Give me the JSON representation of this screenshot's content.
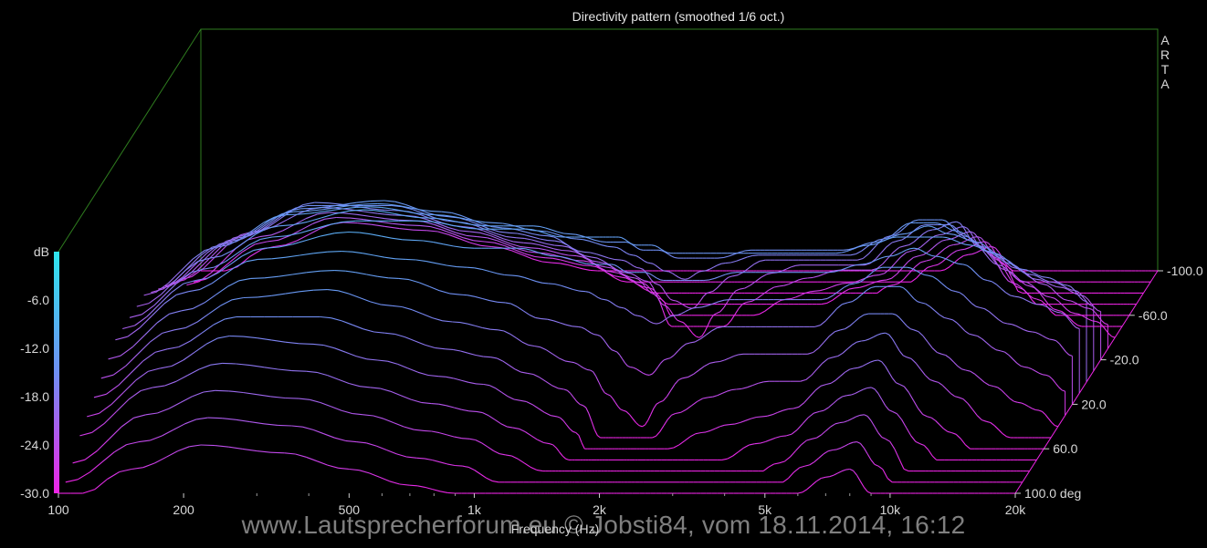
{
  "chart_data": {
    "type": "waterfall",
    "title": "Directivity pattern (smoothed 1/6 oct.)",
    "brand": [
      "A",
      "R",
      "T",
      "A"
    ],
    "xlabel": "Frequency (Hz)",
    "x_scale": "log",
    "x_range": [
      100,
      20000
    ],
    "x_ticks": [
      {
        "v": 100,
        "label": "100"
      },
      {
        "v": 200,
        "label": "200"
      },
      {
        "v": 500,
        "label": "500"
      },
      {
        "v": 1000,
        "label": "1k"
      },
      {
        "v": 2000,
        "label": "2k"
      },
      {
        "v": 5000,
        "label": "5k"
      },
      {
        "v": 10000,
        "label": "10k"
      },
      {
        "v": 20000,
        "label": "20k"
      }
    ],
    "ylabel": "dB",
    "y_range": [
      -30,
      0
    ],
    "y_ticks": [
      {
        "v": 0,
        "label": "dB"
      },
      {
        "v": -6,
        "label": "-6.0"
      },
      {
        "v": -12,
        "label": "-12.0"
      },
      {
        "v": -18,
        "label": "-18.0"
      },
      {
        "v": -24,
        "label": "-24.0"
      },
      {
        "v": -30,
        "label": "-30.0"
      }
    ],
    "z_range": [
      -100,
      100
    ],
    "z_ticks": [
      {
        "v": -100,
        "label": "-100.0"
      },
      {
        "v": -60,
        "label": "-60.0"
      },
      {
        "v": -20,
        "label": "-20.0"
      },
      {
        "v": 20,
        "label": "20.0"
      },
      {
        "v": 60,
        "label": "60.0"
      },
      {
        "v": 100,
        "label": "100.0 deg"
      }
    ],
    "angles": [
      -100,
      -90,
      -80,
      -70,
      -60,
      -50,
      -40,
      -30,
      -20,
      -10,
      0,
      10,
      20,
      30,
      40,
      50,
      60,
      70,
      80,
      90,
      100
    ],
    "colors": {
      "high": "#2ee6ee",
      "mid": "#6f8ff4",
      "low": "#ee24e6",
      "frame": "#2f7d1f"
    },
    "series_frequencies": [
      100,
      150,
      220,
      350,
      500,
      700,
      900,
      1100,
      1350,
      1500,
      1650,
      1800,
      2000,
      2200,
      2500,
      3000,
      3500,
      4200,
      5000,
      6000,
      7000,
      8000,
      9000,
      10500,
      12000,
      14000,
      16000,
      18000,
      20000
    ],
    "series": [
      {
        "angle": -100,
        "values": [
          -32,
          -27,
          -24,
          -25,
          -27,
          -29,
          -30,
          -32,
          -34,
          -38,
          -46,
          -52,
          -52,
          -45,
          -42,
          -40,
          -38,
          -36,
          -34,
          -30,
          -28,
          -27,
          -30,
          -38,
          -41,
          -45,
          -48,
          -50,
          -52
        ]
      },
      {
        "angle": -90,
        "values": [
          -30,
          -25,
          -22,
          -23,
          -25,
          -27,
          -28,
          -30,
          -32,
          -35,
          -43,
          -48,
          -49,
          -42,
          -39,
          -37,
          -35,
          -33,
          -31,
          -28,
          -26,
          -25,
          -28,
          -34,
          -37,
          -41,
          -44,
          -46,
          -48
        ]
      },
      {
        "angle": -80,
        "values": [
          -29,
          -23,
          -20,
          -21,
          -23,
          -25,
          -26,
          -28,
          -30,
          -33,
          -40,
          -44,
          -46,
          -39,
          -36,
          -34,
          -33,
          -31,
          -29,
          -26,
          -24,
          -23,
          -26,
          -31,
          -34,
          -38,
          -40,
          -42,
          -44
        ]
      },
      {
        "angle": -70,
        "values": [
          -27,
          -21,
          -18,
          -19,
          -21,
          -23,
          -24,
          -26,
          -28,
          -30,
          -36,
          -40,
          -42,
          -36,
          -33,
          -31,
          -30,
          -28,
          -27,
          -24,
          -22,
          -21,
          -24,
          -28,
          -31,
          -34,
          -36,
          -38,
          -40
        ]
      },
      {
        "angle": -60,
        "values": [
          -26,
          -20,
          -16,
          -17,
          -19,
          -21,
          -22,
          -24,
          -26,
          -28,
          -33,
          -36,
          -38,
          -33,
          -30,
          -28,
          -27,
          -26,
          -25,
          -22,
          -20,
          -19,
          -22,
          -26,
          -28,
          -31,
          -33,
          -35,
          -36
        ]
      },
      {
        "angle": -50,
        "values": [
          -25,
          -19,
          -15,
          -15,
          -17,
          -19,
          -20,
          -22,
          -24,
          -26,
          -30,
          -32,
          -34,
          -30,
          -27,
          -25,
          -24,
          -23,
          -23,
          -20,
          -18,
          -17,
          -20,
          -23,
          -25,
          -28,
          -30,
          -31,
          -33
        ]
      },
      {
        "angle": -40,
        "values": [
          -24,
          -18,
          -14,
          -13,
          -15,
          -17,
          -18,
          -20,
          -22,
          -23,
          -26,
          -28,
          -30,
          -27,
          -24,
          -22,
          -21,
          -21,
          -21,
          -18,
          -16,
          -16,
          -18,
          -21,
          -23,
          -25,
          -27,
          -28,
          -30
        ]
      },
      {
        "angle": -30,
        "values": [
          -23,
          -17,
          -13,
          -12,
          -13,
          -15,
          -16,
          -18,
          -19,
          -20,
          -22,
          -24,
          -25,
          -23,
          -21,
          -19,
          -19,
          -19,
          -19,
          -16,
          -14,
          -14,
          -16,
          -18,
          -20,
          -22,
          -24,
          -25,
          -27
        ]
      },
      {
        "angle": -20,
        "values": [
          -22,
          -16,
          -12,
          -11,
          -12,
          -13,
          -14,
          -15,
          -16,
          -17,
          -18,
          -19,
          -20,
          -19,
          -18,
          -17,
          -17,
          -17,
          -17,
          -15,
          -13,
          -13,
          -14,
          -16,
          -18,
          -20,
          -21,
          -22,
          -24
        ]
      },
      {
        "angle": -10,
        "values": [
          -22,
          -16,
          -12,
          -10,
          -11,
          -12,
          -12,
          -13,
          -14,
          -14,
          -15,
          -15,
          -16,
          -16,
          -16,
          -15,
          -15,
          -15,
          -15,
          -14,
          -13,
          -12,
          -13,
          -14,
          -16,
          -18,
          -19,
          -20,
          -22
        ]
      },
      {
        "angle": 0,
        "values": [
          -22,
          -16,
          -12,
          -10,
          -10,
          -11,
          -11,
          -12,
          -12,
          -12,
          -13,
          -13,
          -14,
          -14,
          -14,
          -14,
          -14,
          -14,
          -14,
          -13,
          -12,
          -12,
          -12,
          -13,
          -14,
          -16,
          -17,
          -18,
          -20
        ]
      },
      {
        "angle": 10,
        "values": [
          -22,
          -16,
          -12,
          -10,
          -11,
          -12,
          -12,
          -13,
          -14,
          -14,
          -15,
          -15,
          -16,
          -16,
          -16,
          -15,
          -15,
          -15,
          -15,
          -14,
          -13,
          -12,
          -13,
          -14,
          -16,
          -18,
          -19,
          -20,
          -22
        ]
      },
      {
        "angle": 20,
        "values": [
          -22,
          -16,
          -12,
          -11,
          -12,
          -13,
          -14,
          -15,
          -16,
          -17,
          -18,
          -19,
          -20,
          -19,
          -18,
          -17,
          -17,
          -17,
          -17,
          -15,
          -13,
          -13,
          -14,
          -16,
          -18,
          -20,
          -21,
          -22,
          -24
        ]
      },
      {
        "angle": 30,
        "values": [
          -23,
          -17,
          -13,
          -12,
          -13,
          -15,
          -16,
          -18,
          -19,
          -20,
          -22,
          -24,
          -25,
          -23,
          -21,
          -19,
          -19,
          -19,
          -19,
          -16,
          -14,
          -14,
          -16,
          -18,
          -20,
          -22,
          -24,
          -25,
          -27
        ]
      },
      {
        "angle": 40,
        "values": [
          -24,
          -18,
          -14,
          -13,
          -15,
          -17,
          -18,
          -20,
          -22,
          -23,
          -26,
          -28,
          -30,
          -27,
          -24,
          -22,
          -21,
          -21,
          -21,
          -18,
          -16,
          -16,
          -18,
          -21,
          -23,
          -25,
          -27,
          -28,
          -30
        ]
      },
      {
        "angle": 50,
        "values": [
          -25,
          -19,
          -15,
          -15,
          -17,
          -19,
          -20,
          -22,
          -24,
          -26,
          -30,
          -32,
          -34,
          -30,
          -27,
          -25,
          -24,
          -23,
          -23,
          -20,
          -18,
          -17,
          -20,
          -23,
          -25,
          -28,
          -30,
          -31,
          -33
        ]
      },
      {
        "angle": 60,
        "values": [
          -26,
          -20,
          -16,
          -17,
          -19,
          -21,
          -22,
          -24,
          -26,
          -28,
          -33,
          -36,
          -38,
          -33,
          -30,
          -28,
          -27,
          -26,
          -25,
          -22,
          -20,
          -19,
          -22,
          -26,
          -28,
          -31,
          -33,
          -35,
          -36
        ]
      },
      {
        "angle": 70,
        "values": [
          -27,
          -21,
          -18,
          -19,
          -21,
          -23,
          -24,
          -26,
          -28,
          -30,
          -36,
          -40,
          -42,
          -36,
          -33,
          -31,
          -30,
          -28,
          -27,
          -24,
          -22,
          -21,
          -24,
          -28,
          -31,
          -34,
          -36,
          -38,
          -40
        ]
      },
      {
        "angle": 80,
        "values": [
          -29,
          -23,
          -20,
          -21,
          -23,
          -25,
          -26,
          -28,
          -30,
          -33,
          -40,
          -44,
          -46,
          -39,
          -36,
          -34,
          -33,
          -31,
          -29,
          -26,
          -24,
          -23,
          -26,
          -31,
          -34,
          -38,
          -40,
          -42,
          -44
        ]
      },
      {
        "angle": 90,
        "values": [
          -30,
          -25,
          -22,
          -23,
          -25,
          -27,
          -28,
          -30,
          -32,
          -35,
          -43,
          -48,
          -49,
          -42,
          -39,
          -37,
          -35,
          -33,
          -31,
          -28,
          -26,
          -25,
          -28,
          -34,
          -37,
          -41,
          -44,
          -46,
          -48
        ]
      },
      {
        "angle": 100,
        "values": [
          -32,
          -27,
          -24,
          -25,
          -27,
          -29,
          -30,
          -32,
          -34,
          -38,
          -46,
          -52,
          -52,
          -45,
          -42,
          -40,
          -38,
          -36,
          -34,
          -30,
          -28,
          -27,
          -30,
          -38,
          -41,
          -45,
          -48,
          -50,
          -52
        ]
      }
    ]
  },
  "watermark": "www.Lautsprecherforum.eu © Jobsti84, vom 18.11.2014, 16:12"
}
